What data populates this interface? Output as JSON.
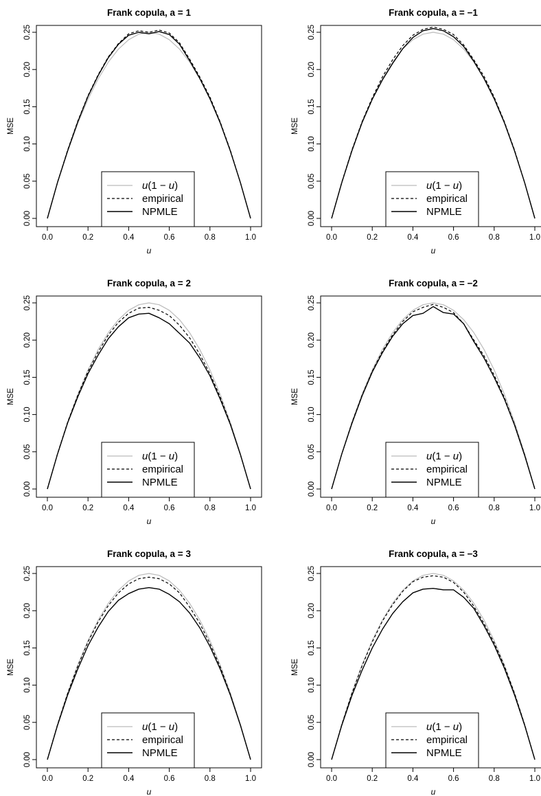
{
  "legend": {
    "items": [
      {
        "prefix": "u",
        "middle": "(1 − ",
        "suffix_italic": "u",
        "close": ")",
        "label": "u(1 − u)",
        "color": "#bbbbbb",
        "dash": ""
      },
      {
        "label": "empirical",
        "color": "#000000",
        "dash": "4,3"
      },
      {
        "label": "NPMLE",
        "color": "#000000",
        "dash": ""
      }
    ]
  },
  "chart_data": [
    {
      "type": "line",
      "title_prefix": "Frank copula, a = ",
      "a_label": "1",
      "title": "Frank copula, a = 1",
      "xlabel": "u",
      "ylabel": "MSE",
      "xlim": [
        0,
        1
      ],
      "ylim": [
        0,
        0.25
      ],
      "xticks": [
        "0.0",
        "0.2",
        "0.4",
        "0.6",
        "0.8",
        "1.0"
      ],
      "yticks": [
        "0.00",
        "0.05",
        "0.10",
        "0.15",
        "0.20",
        "0.25"
      ],
      "legend": "bottom-center",
      "x": [
        0,
        0.05,
        0.1,
        0.15,
        0.2,
        0.25,
        0.3,
        0.35,
        0.4,
        0.45,
        0.5,
        0.55,
        0.6,
        0.65,
        0.7,
        0.75,
        0.8,
        0.85,
        0.9,
        0.95,
        1
      ],
      "series": [
        {
          "name": "u(1 − u)",
          "style": "gray",
          "values": [
            0,
            0.0475,
            0.09,
            0.1275,
            0.16,
            0.1875,
            0.21,
            0.2275,
            0.24,
            0.2475,
            0.25,
            0.2475,
            0.24,
            0.2275,
            0.21,
            0.1875,
            0.16,
            0.1275,
            0.09,
            0.0475,
            0
          ]
        },
        {
          "name": "empirical",
          "style": "dashed",
          "values": [
            0,
            0.0485,
            0.092,
            0.131,
            0.165,
            0.193,
            0.217,
            0.235,
            0.248,
            0.252,
            0.25,
            0.253,
            0.249,
            0.236,
            0.214,
            0.19,
            0.163,
            0.13,
            0.092,
            0.048,
            0
          ]
        },
        {
          "name": "NPMLE",
          "style": "solid",
          "values": [
            0,
            0.0485,
            0.091,
            0.13,
            0.164,
            0.192,
            0.216,
            0.234,
            0.246,
            0.25,
            0.248,
            0.251,
            0.247,
            0.234,
            0.212,
            0.188,
            0.161,
            0.129,
            0.091,
            0.048,
            0
          ]
        }
      ]
    },
    {
      "type": "line",
      "title_prefix": "Frank copula, a = ",
      "a_label": "−1",
      "title": "Frank copula, a = −1",
      "xlabel": "u",
      "ylabel": "MSE",
      "xlim": [
        0,
        1
      ],
      "ylim": [
        0,
        0.25
      ],
      "xticks": [
        "0.0",
        "0.2",
        "0.4",
        "0.6",
        "0.8",
        "1.0"
      ],
      "yticks": [
        "0.00",
        "0.05",
        "0.10",
        "0.15",
        "0.20",
        "0.25"
      ],
      "legend": "bottom-center",
      "x": [
        0,
        0.05,
        0.1,
        0.15,
        0.2,
        0.25,
        0.3,
        0.35,
        0.4,
        0.45,
        0.5,
        0.55,
        0.6,
        0.65,
        0.7,
        0.75,
        0.8,
        0.85,
        0.9,
        0.95,
        1
      ],
      "series": [
        {
          "name": "u(1 − u)",
          "style": "gray",
          "values": [
            0,
            0.0475,
            0.09,
            0.1275,
            0.16,
            0.1875,
            0.21,
            0.2275,
            0.24,
            0.2475,
            0.25,
            0.2475,
            0.24,
            0.2275,
            0.21,
            0.1875,
            0.16,
            0.1275,
            0.09,
            0.0475,
            0
          ]
        },
        {
          "name": "empirical",
          "style": "dashed",
          "values": [
            0,
            0.0485,
            0.092,
            0.13,
            0.162,
            0.19,
            0.213,
            0.232,
            0.246,
            0.254,
            0.257,
            0.254,
            0.247,
            0.233,
            0.213,
            0.191,
            0.163,
            0.13,
            0.092,
            0.048,
            0
          ]
        },
        {
          "name": "NPMLE",
          "style": "solid",
          "values": [
            0,
            0.048,
            0.091,
            0.129,
            0.16,
            0.186,
            0.208,
            0.228,
            0.243,
            0.252,
            0.255,
            0.252,
            0.244,
            0.231,
            0.211,
            0.188,
            0.161,
            0.129,
            0.091,
            0.048,
            0
          ]
        }
      ]
    },
    {
      "type": "line",
      "title_prefix": "Frank copula, a = ",
      "a_label": "2",
      "title": "Frank copula, a = 2",
      "xlabel": "u",
      "ylabel": "MSE",
      "xlim": [
        0,
        1
      ],
      "ylim": [
        0,
        0.25
      ],
      "xticks": [
        "0.0",
        "0.2",
        "0.4",
        "0.6",
        "0.8",
        "1.0"
      ],
      "yticks": [
        "0.00",
        "0.05",
        "0.10",
        "0.15",
        "0.20",
        "0.25"
      ],
      "legend": "bottom-center",
      "x": [
        0,
        0.05,
        0.1,
        0.15,
        0.2,
        0.25,
        0.3,
        0.35,
        0.4,
        0.45,
        0.5,
        0.55,
        0.6,
        0.65,
        0.7,
        0.75,
        0.8,
        0.85,
        0.9,
        0.95,
        1
      ],
      "series": [
        {
          "name": "u(1 − u)",
          "style": "gray",
          "values": [
            0,
            0.0475,
            0.09,
            0.1275,
            0.16,
            0.1875,
            0.21,
            0.2275,
            0.24,
            0.2475,
            0.25,
            0.2475,
            0.24,
            0.2275,
            0.21,
            0.1875,
            0.16,
            0.1275,
            0.09,
            0.0475,
            0
          ]
        },
        {
          "name": "empirical",
          "style": "dashed",
          "values": [
            0,
            0.0475,
            0.09,
            0.126,
            0.158,
            0.184,
            0.207,
            0.224,
            0.236,
            0.243,
            0.244,
            0.24,
            0.233,
            0.22,
            0.203,
            0.181,
            0.155,
            0.124,
            0.088,
            0.046,
            0
          ]
        },
        {
          "name": "NPMLE",
          "style": "solid",
          "values": [
            0,
            0.047,
            0.089,
            0.124,
            0.155,
            0.18,
            0.202,
            0.218,
            0.23,
            0.235,
            0.236,
            0.23,
            0.222,
            0.209,
            0.196,
            0.176,
            0.152,
            0.121,
            0.087,
            0.046,
            0
          ]
        }
      ]
    },
    {
      "type": "line",
      "title_prefix": "Frank copula, a = ",
      "a_label": "−2",
      "title": "Frank copula, a = −2",
      "xlabel": "u",
      "ylabel": "MSE",
      "xlim": [
        0,
        1
      ],
      "ylim": [
        0,
        0.25
      ],
      "xticks": [
        "0.0",
        "0.2",
        "0.4",
        "0.6",
        "0.8",
        "1.0"
      ],
      "yticks": [
        "0.00",
        "0.05",
        "0.10",
        "0.15",
        "0.20",
        "0.25"
      ],
      "legend": "bottom-center",
      "x": [
        0,
        0.05,
        0.1,
        0.15,
        0.2,
        0.25,
        0.3,
        0.35,
        0.4,
        0.45,
        0.5,
        0.55,
        0.6,
        0.65,
        0.7,
        0.75,
        0.8,
        0.85,
        0.9,
        0.95,
        1
      ],
      "series": [
        {
          "name": "u(1 − u)",
          "style": "gray",
          "values": [
            0,
            0.0475,
            0.09,
            0.1275,
            0.16,
            0.1875,
            0.21,
            0.2275,
            0.24,
            0.2475,
            0.25,
            0.2475,
            0.24,
            0.2275,
            0.21,
            0.1875,
            0.16,
            0.1275,
            0.09,
            0.0475,
            0
          ]
        },
        {
          "name": "empirical",
          "style": "dashed",
          "values": [
            0,
            0.047,
            0.089,
            0.126,
            0.158,
            0.185,
            0.207,
            0.225,
            0.238,
            0.244,
            0.248,
            0.244,
            0.237,
            0.222,
            0.2,
            0.179,
            0.153,
            0.123,
            0.087,
            0.046,
            0
          ]
        },
        {
          "name": "NPMLE",
          "style": "solid",
          "values": [
            0,
            0.047,
            0.088,
            0.125,
            0.157,
            0.183,
            0.205,
            0.222,
            0.233,
            0.236,
            0.245,
            0.237,
            0.235,
            0.222,
            0.198,
            0.176,
            0.15,
            0.121,
            0.086,
            0.045,
            0
          ]
        }
      ]
    },
    {
      "type": "line",
      "title_prefix": "Frank copula, a = ",
      "a_label": "3",
      "title": "Frank copula, a = 3",
      "xlabel": "u",
      "ylabel": "MSE",
      "xlim": [
        0,
        1
      ],
      "ylim": [
        0,
        0.25
      ],
      "xticks": [
        "0.0",
        "0.2",
        "0.4",
        "0.6",
        "0.8",
        "1.0"
      ],
      "yticks": [
        "0.00",
        "0.05",
        "0.10",
        "0.15",
        "0.20",
        "0.25"
      ],
      "legend": "bottom-center",
      "x": [
        0,
        0.05,
        0.1,
        0.15,
        0.2,
        0.25,
        0.3,
        0.35,
        0.4,
        0.45,
        0.5,
        0.55,
        0.6,
        0.65,
        0.7,
        0.75,
        0.8,
        0.85,
        0.9,
        0.95,
        1
      ],
      "series": [
        {
          "name": "u(1 − u)",
          "style": "gray",
          "values": [
            0,
            0.0475,
            0.09,
            0.1275,
            0.16,
            0.1875,
            0.21,
            0.2275,
            0.24,
            0.2475,
            0.25,
            0.2475,
            0.24,
            0.2275,
            0.21,
            0.1875,
            0.16,
            0.1275,
            0.09,
            0.0475,
            0
          ]
        },
        {
          "name": "empirical",
          "style": "dashed",
          "values": [
            0,
            0.047,
            0.089,
            0.126,
            0.158,
            0.185,
            0.207,
            0.224,
            0.236,
            0.243,
            0.245,
            0.243,
            0.236,
            0.224,
            0.205,
            0.183,
            0.156,
            0.125,
            0.088,
            0.046,
            0
          ]
        },
        {
          "name": "NPMLE",
          "style": "solid",
          "values": [
            0,
            0.046,
            0.087,
            0.122,
            0.153,
            0.178,
            0.199,
            0.214,
            0.223,
            0.229,
            0.231,
            0.229,
            0.222,
            0.212,
            0.197,
            0.177,
            0.152,
            0.122,
            0.087,
            0.046,
            0
          ]
        }
      ]
    },
    {
      "type": "line",
      "title_prefix": "Frank copula, a = ",
      "a_label": "−3",
      "title": "Frank copula, a = −3",
      "xlabel": "u",
      "ylabel": "MSE",
      "xlim": [
        0,
        1
      ],
      "ylim": [
        0,
        0.25
      ],
      "xticks": [
        "0.0",
        "0.2",
        "0.4",
        "0.6",
        "0.8",
        "1.0"
      ],
      "yticks": [
        "0.00",
        "0.05",
        "0.10",
        "0.15",
        "0.20",
        "0.25"
      ],
      "legend": "bottom-center",
      "x": [
        0,
        0.05,
        0.1,
        0.15,
        0.2,
        0.25,
        0.3,
        0.35,
        0.4,
        0.45,
        0.5,
        0.55,
        0.6,
        0.65,
        0.7,
        0.75,
        0.8,
        0.85,
        0.9,
        0.95,
        1
      ],
      "series": [
        {
          "name": "u(1 − u)",
          "style": "gray",
          "values": [
            0,
            0.0475,
            0.09,
            0.1275,
            0.16,
            0.1875,
            0.21,
            0.2275,
            0.24,
            0.2475,
            0.25,
            0.2475,
            0.24,
            0.2275,
            0.21,
            0.1875,
            0.16,
            0.1275,
            0.09,
            0.0475,
            0
          ]
        },
        {
          "name": "empirical",
          "style": "dashed",
          "values": [
            0,
            0.047,
            0.089,
            0.126,
            0.158,
            0.186,
            0.208,
            0.226,
            0.239,
            0.245,
            0.247,
            0.245,
            0.238,
            0.225,
            0.206,
            0.183,
            0.157,
            0.126,
            0.089,
            0.047,
            0
          ]
        },
        {
          "name": "NPMLE",
          "style": "solid",
          "values": [
            0,
            0.046,
            0.086,
            0.12,
            0.15,
            0.175,
            0.196,
            0.212,
            0.224,
            0.229,
            0.23,
            0.228,
            0.228,
            0.218,
            0.203,
            0.18,
            0.154,
            0.123,
            0.087,
            0.046,
            0
          ]
        }
      ]
    }
  ]
}
